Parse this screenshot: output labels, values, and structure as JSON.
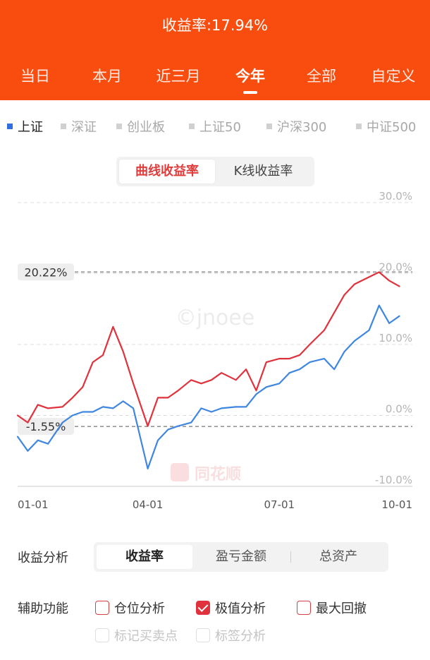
{
  "header": {
    "title": "收益率:17.94%"
  },
  "period_tabs": [
    "当日",
    "本月",
    "近三月",
    "今年",
    "全部",
    "自定义"
  ],
  "period_active": "今年",
  "index_tabs": [
    "上证",
    "深证",
    "创业板",
    "上证50",
    "沪深300",
    "中证500"
  ],
  "index_active": "上证",
  "curve_toggle": {
    "options": [
      "曲线收益率",
      "K线收益率"
    ],
    "active": "曲线收益率"
  },
  "watermarks": {
    "author": "©jnoee",
    "brand": "同花顺"
  },
  "colors": {
    "header": "#f84d0f",
    "portfolio_line": "#e0323c",
    "index_line": "#3f86e0",
    "accent_blue": "#2f6fe0"
  },
  "analysis": {
    "label": "收益分析",
    "options": [
      "收益率",
      "盈亏金额",
      "总资产"
    ],
    "active": "收益率"
  },
  "aux": {
    "label": "辅助功能",
    "options": [
      {
        "label": "仓位分析",
        "checked": false,
        "disabled": false
      },
      {
        "label": "极值分析",
        "checked": true,
        "disabled": false
      },
      {
        "label": "最大回撤",
        "checked": false,
        "disabled": false
      },
      {
        "label": "标记买卖点",
        "checked": false,
        "disabled": true
      },
      {
        "label": "标签分析",
        "checked": false,
        "disabled": true
      }
    ]
  },
  "chart_data": {
    "type": "line",
    "x_ticks": [
      "01-01",
      "04-01",
      "07-01",
      "10-01"
    ],
    "y_ticks": [
      "30.0%",
      "20.0%",
      "10.0%",
      "0.0%",
      "-10.0%"
    ],
    "ylim": [
      -10,
      30
    ],
    "grid": true,
    "extremes": {
      "max": 20.22,
      "min": -1.55,
      "max_label": "20.22%",
      "min_label": "-1.55%"
    },
    "series": [
      {
        "color": "#e0323c",
        "x": [
          "01-01",
          "01-08",
          "01-15",
          "01-22",
          "02-01",
          "02-08",
          "02-15",
          "02-22",
          "03-01",
          "03-08",
          "03-15",
          "03-22",
          "04-01",
          "04-08",
          "04-15",
          "04-22",
          "05-01",
          "05-08",
          "05-15",
          "05-22",
          "06-01",
          "06-08",
          "06-15",
          "06-22",
          "07-01",
          "07-08",
          "07-15",
          "07-22",
          "08-01",
          "08-08",
          "08-15",
          "08-22",
          "09-01",
          "09-08",
          "09-15",
          "09-22"
        ],
        "values": [
          0.0,
          -1.0,
          1.5,
          1.0,
          1.2,
          2.5,
          4.0,
          7.5,
          8.5,
          12.5,
          9.0,
          4.5,
          -1.5,
          2.5,
          2.5,
          3.5,
          5.0,
          4.5,
          5.0,
          6.0,
          5.0,
          6.5,
          3.5,
          7.5,
          8.0,
          8.0,
          8.5,
          10.0,
          12.0,
          14.5,
          17.0,
          18.5,
          19.5,
          20.2,
          19.0,
          18.2
        ]
      },
      {
        "color": "#3f86e0",
        "x": [
          "01-01",
          "01-08",
          "01-15",
          "01-22",
          "02-01",
          "02-08",
          "02-15",
          "02-22",
          "03-01",
          "03-08",
          "03-15",
          "03-22",
          "04-01",
          "04-08",
          "04-15",
          "04-22",
          "05-01",
          "05-08",
          "05-15",
          "05-22",
          "06-01",
          "06-08",
          "06-15",
          "06-22",
          "07-01",
          "07-08",
          "07-15",
          "07-22",
          "08-01",
          "08-08",
          "08-15",
          "08-22",
          "09-01",
          "09-08",
          "09-15",
          "09-22"
        ],
        "values": [
          -3.0,
          -5.0,
          -3.5,
          -4.0,
          -1.0,
          0.0,
          0.5,
          0.5,
          1.2,
          1.0,
          2.0,
          1.0,
          -7.5,
          -3.5,
          -2.0,
          -1.5,
          -1.0,
          1.0,
          0.5,
          1.0,
          1.2,
          1.2,
          3.0,
          4.0,
          4.5,
          6.0,
          6.5,
          7.5,
          8.0,
          6.5,
          9.0,
          10.5,
          12.0,
          15.5,
          13.0,
          14.0
        ]
      }
    ]
  }
}
